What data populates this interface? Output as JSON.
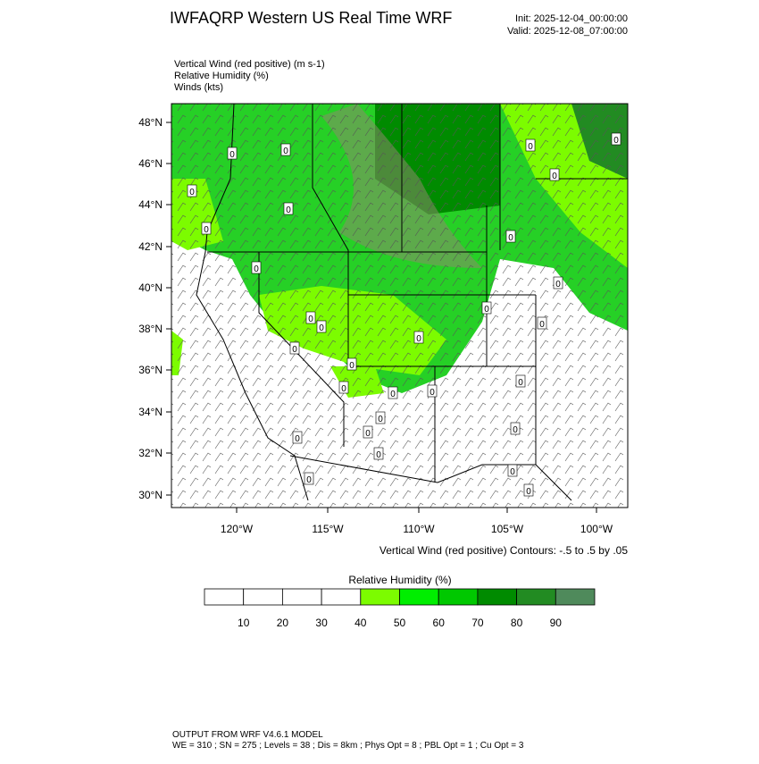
{
  "header": {
    "title": "IWFAQRP Western US Real Time WRF",
    "init": "Init: 2025-12-04_00:00:00",
    "valid": "Valid: 2025-12-08_07:00:00"
  },
  "fields": [
    "Vertical Wind (red positive)   (m s-1)",
    "Relative Humidity   (%)",
    "Winds   (kts)"
  ],
  "map": {
    "lat_labels": [
      "48°N",
      "46°N",
      "44°N",
      "42°N",
      "40°N",
      "38°N",
      "36°N",
      "34°N",
      "32°N",
      "30°N"
    ],
    "lon_labels": [
      "120°W",
      "115°W",
      "110°W",
      "105°W",
      "100°W"
    ],
    "contour_labels": [
      "0",
      "0",
      "0",
      "0",
      "0",
      "0",
      "0",
      "0",
      "0",
      "0",
      "0",
      "0",
      "0",
      "0",
      "0",
      "0",
      "0",
      "0",
      "0",
      "0",
      "0",
      "0",
      "0",
      "0",
      "0",
      "0",
      "0",
      "0",
      "0",
      "0"
    ],
    "contour_note": "Vertical Wind (red positive) Contours: -.5 to .5 by .05"
  },
  "colorbar": {
    "title": "Relative Humidity  (%)",
    "levels": [
      10,
      20,
      30,
      40,
      50,
      60,
      70,
      80,
      90
    ],
    "colors": [
      "#ffffff",
      "#ffffff",
      "#ffffff",
      "#ffffff",
      "#7cfc00",
      "#00ee00",
      "#00c800",
      "#008b00",
      "#228b22",
      "#4f8a5b"
    ]
  },
  "footer": {
    "line1": "OUTPUT FROM WRF V4.6.1 MODEL",
    "line2": "WE = 310 ; SN = 275 ; Levels = 38 ; Dis = 8km ; Phys Opt = 8 ; PBL Opt = 1 ; Cu Opt = 3"
  }
}
